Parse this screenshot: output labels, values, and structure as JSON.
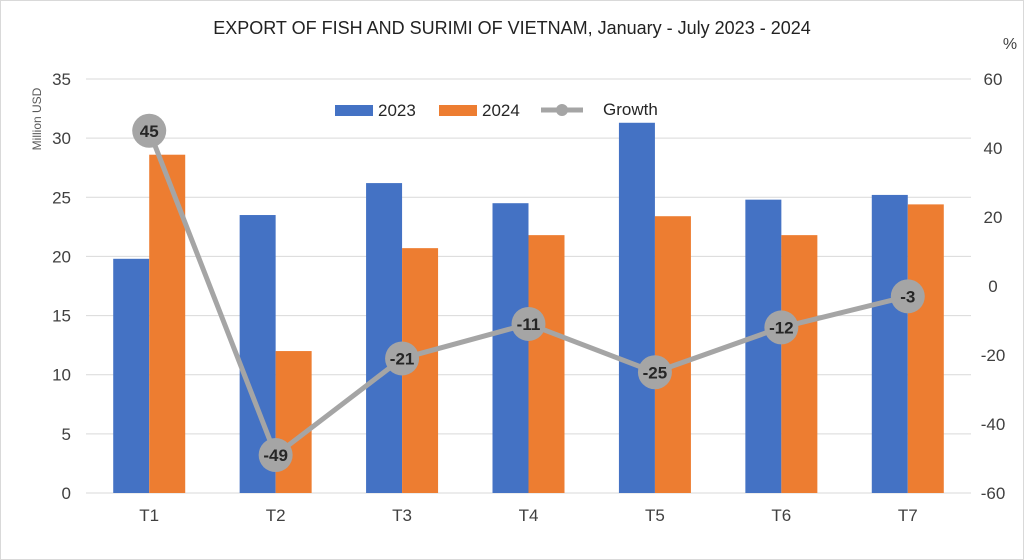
{
  "chart_data": {
    "type": "bar",
    "title": "EXPORT OF FISH AND SURIMI OF VIETNAM, January - July 2023 - 2024",
    "ylabel": "Million USD",
    "y2label": "%",
    "categories": [
      "T1",
      "T2",
      "T3",
      "T4",
      "T5",
      "T6",
      "T7"
    ],
    "ylim": [
      0,
      35
    ],
    "yticks": [
      0,
      5,
      10,
      15,
      20,
      25,
      30,
      35
    ],
    "y2lim": [
      -60,
      60
    ],
    "y2ticks": [
      -60,
      -40,
      -20,
      0,
      20,
      40,
      60
    ],
    "grid": true,
    "legend_position": "top-center",
    "series": [
      {
        "name": "2023",
        "type": "bar",
        "axis": "left",
        "color": "#4472c4",
        "values": [
          19.8,
          23.5,
          26.2,
          24.5,
          31.3,
          24.8,
          25.2
        ]
      },
      {
        "name": "2024",
        "type": "bar",
        "axis": "left",
        "color": "#ed7d31",
        "values": [
          28.6,
          12.0,
          20.7,
          21.8,
          23.4,
          21.8,
          24.4
        ]
      },
      {
        "name": "Growth",
        "type": "line",
        "axis": "right",
        "color": "#a5a5a5",
        "values": [
          45,
          -49,
          -21,
          -11,
          -25,
          -12,
          -3
        ],
        "labels": [
          "45",
          "-49",
          "-21",
          "-11",
          "-25",
          "-12",
          "-3"
        ]
      }
    ]
  }
}
